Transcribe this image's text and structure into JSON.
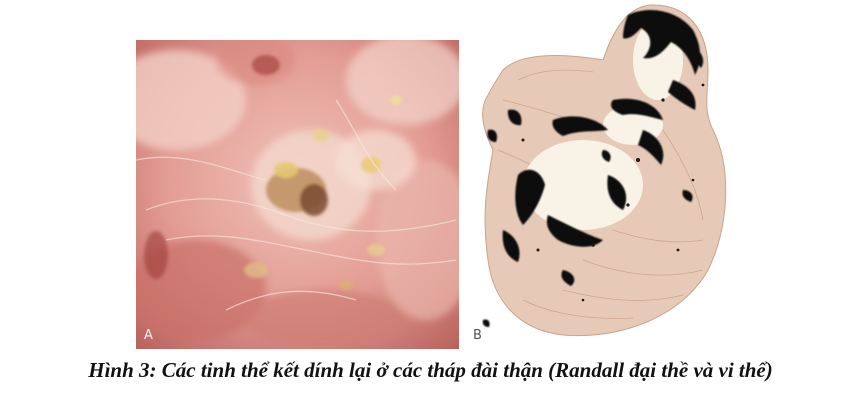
{
  "figure": {
    "panel_a": {
      "label": "A"
    },
    "panel_b": {
      "label": "B"
    },
    "caption": "Hình 3: Các tinh thể kết dính lại ở các tháp đài thận (Randall đại thề và vi thể)"
  }
}
